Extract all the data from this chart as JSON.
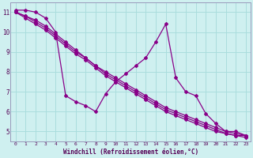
{
  "title": "",
  "xlabel": "Windchill (Refroidissement éolien,°C)",
  "ylabel": "",
  "background_color": "#cff0f0",
  "line_color": "#880088",
  "grid_color": "#aadddd",
  "xlim": [
    -0.5,
    23.5
  ],
  "ylim": [
    4.5,
    11.5
  ],
  "yticks": [
    5,
    6,
    7,
    8,
    9,
    10,
    11
  ],
  "xticks": [
    0,
    1,
    2,
    3,
    4,
    5,
    6,
    7,
    8,
    9,
    10,
    11,
    12,
    13,
    14,
    15,
    16,
    17,
    18,
    19,
    20,
    21,
    22,
    23
  ],
  "series": [
    [
      11.1,
      11.1,
      11.0,
      10.7,
      10.0,
      6.8,
      6.5,
      6.3,
      6.0,
      6.9,
      7.5,
      7.9,
      8.3,
      8.7,
      9.5,
      10.4,
      7.7,
      7.0,
      6.8,
      5.9,
      5.4,
      5.0,
      5.0,
      4.8
    ],
    [
      11.0,
      10.8,
      10.6,
      10.3,
      9.9,
      9.5,
      9.1,
      8.7,
      8.3,
      8.0,
      7.7,
      7.4,
      7.1,
      6.8,
      6.5,
      6.2,
      6.0,
      5.8,
      5.6,
      5.4,
      5.2,
      5.0,
      4.9,
      4.8
    ],
    [
      11.0,
      10.8,
      10.5,
      10.2,
      9.8,
      9.4,
      9.0,
      8.7,
      8.3,
      7.9,
      7.6,
      7.3,
      7.0,
      6.7,
      6.4,
      6.1,
      5.9,
      5.7,
      5.5,
      5.3,
      5.1,
      4.9,
      4.8,
      4.8
    ],
    [
      11.0,
      10.7,
      10.4,
      10.1,
      9.7,
      9.3,
      8.9,
      8.6,
      8.2,
      7.8,
      7.5,
      7.2,
      6.9,
      6.6,
      6.3,
      6.0,
      5.8,
      5.6,
      5.4,
      5.2,
      5.0,
      4.9,
      4.8,
      4.7
    ]
  ]
}
